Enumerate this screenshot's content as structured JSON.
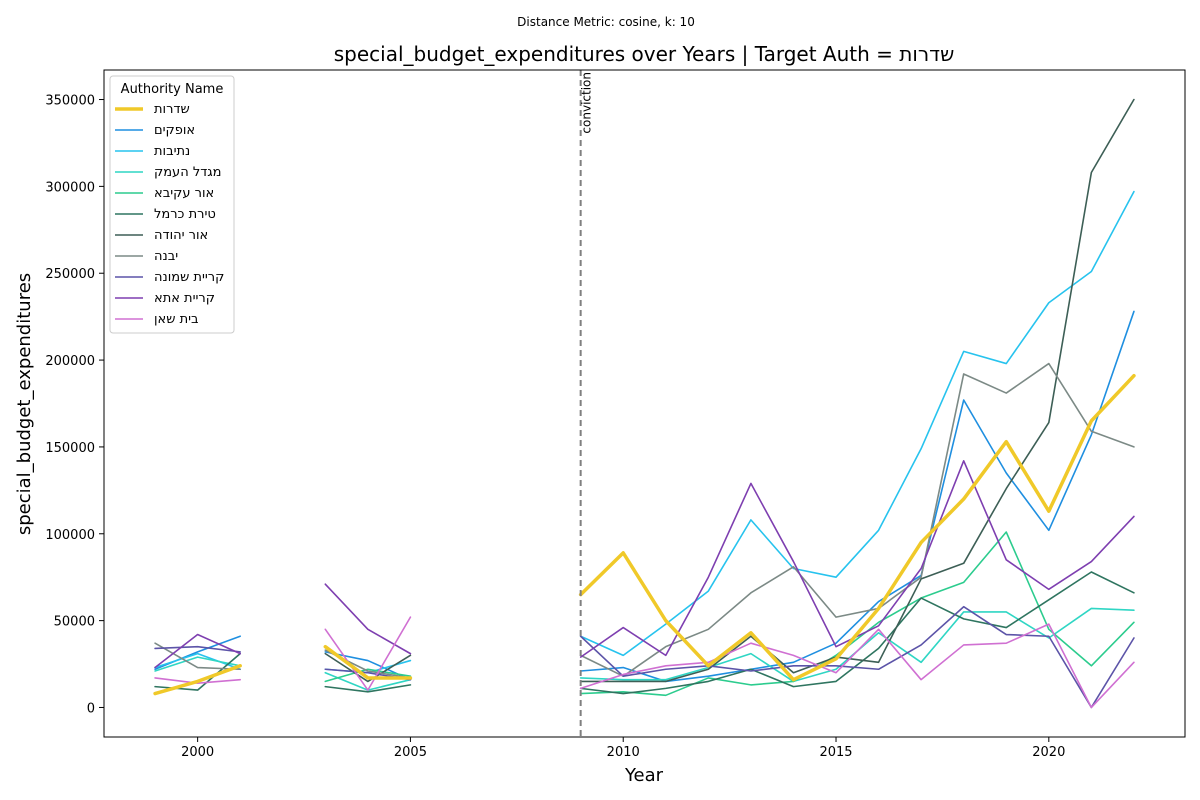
{
  "suptitle": "Distance Metric: cosine, k: 10",
  "chart_data": {
    "type": "line",
    "title": "special_budget_expenditures over Years | Target Auth = שדרות",
    "xlabel": "Year",
    "ylabel": "special_budget_expenditures",
    "xlim": [
      1997.8,
      2023.2
    ],
    "ylim": [
      -17000,
      367000
    ],
    "xticks": [
      2000,
      2005,
      2010,
      2015,
      2020
    ],
    "yticks": [
      0,
      50000,
      100000,
      150000,
      200000,
      250000,
      300000,
      350000
    ],
    "grid": false,
    "legend": {
      "title": "Authority Name",
      "placement": "top-left"
    },
    "vline": {
      "x": 2009,
      "label": "conviction",
      "color": "#808080"
    },
    "x": [
      1999,
      2000,
      2001,
      2003,
      2004,
      2005,
      2009,
      2010,
      2011,
      2012,
      2013,
      2014,
      2015,
      2016,
      2017,
      2018,
      2019,
      2020,
      2021,
      2022
    ],
    "series": [
      {
        "name": "שדרות",
        "color": "#f0c929",
        "highlight": true,
        "values": [
          8000,
          15000,
          24000,
          35000,
          17000,
          17000,
          65000,
          89000,
          50000,
          24000,
          43000,
          16000,
          28000,
          57000,
          95000,
          120000,
          153000,
          113000,
          165000,
          191000
        ]
      },
      {
        "name": "אופקים",
        "color": "#1f8fe0",
        "values": [
          22000,
          32000,
          41000,
          32000,
          27000,
          16000,
          21000,
          23000,
          15000,
          18000,
          22000,
          26000,
          37000,
          61000,
          76000,
          177000,
          135000,
          102000,
          157000,
          228000
        ]
      },
      {
        "name": "נתיבות",
        "color": "#27c3ee",
        "values": [
          23000,
          31000,
          22000,
          22000,
          20000,
          27000,
          41000,
          30000,
          48000,
          67000,
          108000,
          80000,
          75000,
          102000,
          149000,
          205000,
          198000,
          233000,
          251000,
          297000
        ]
      },
      {
        "name": "מגדל העמק",
        "color": "#2fd6c4",
        "values": [
          21000,
          29000,
          24000,
          20000,
          10000,
          16000,
          17000,
          16000,
          16000,
          23000,
          31000,
          15000,
          22000,
          43000,
          26000,
          55000,
          55000,
          40000,
          57000,
          56000
        ]
      },
      {
        "name": "אור עקיבא",
        "color": "#2ccc8e",
        "values": [
          null,
          null,
          null,
          15000,
          22000,
          18000,
          8000,
          9000,
          7000,
          17000,
          13000,
          15000,
          30000,
          49000,
          63000,
          72000,
          101000,
          45000,
          24000,
          49000
        ]
      },
      {
        "name": "טירת כרמל",
        "color": "#2f7560",
        "values": [
          12000,
          10000,
          31000,
          12000,
          9000,
          13000,
          11000,
          8000,
          11000,
          15000,
          22000,
          12000,
          15000,
          34000,
          63000,
          51000,
          46000,
          62000,
          78000,
          66000
        ]
      },
      {
        "name": "אור יהודה",
        "color": "#3d5f56",
        "values": [
          null,
          null,
          null,
          31000,
          15000,
          30000,
          15000,
          15000,
          15000,
          22000,
          41000,
          20000,
          29000,
          26000,
          74000,
          83000,
          126000,
          164000,
          308000,
          350000
        ]
      },
      {
        "name": "יבנה",
        "color": "#7c8a86",
        "values": [
          37000,
          23000,
          22000,
          33000,
          21000,
          17000,
          30000,
          18000,
          35000,
          45000,
          66000,
          81000,
          52000,
          57000,
          75000,
          192000,
          181000,
          198000,
          159000,
          150000
        ]
      },
      {
        "name": "קריית שמונה",
        "color": "#5c54a8",
        "values": [
          34000,
          35000,
          32000,
          22000,
          20000,
          16000,
          41000,
          18000,
          22000,
          24000,
          21000,
          24000,
          24000,
          22000,
          36000,
          58000,
          42000,
          41000,
          0,
          40000
        ]
      },
      {
        "name": "קריית אתא",
        "color": "#7e3fb0",
        "values": [
          23000,
          42000,
          31000,
          71000,
          45000,
          31000,
          29000,
          46000,
          30000,
          75000,
          129000,
          84000,
          35000,
          47000,
          80000,
          142000,
          85000,
          68000,
          84000,
          110000
        ]
      },
      {
        "name": "בית שאן",
        "color": "#d070d2",
        "values": [
          17000,
          14000,
          16000,
          45000,
          10000,
          52000,
          11000,
          19000,
          24000,
          26000,
          37000,
          30000,
          20000,
          45000,
          16000,
          36000,
          37000,
          48000,
          0,
          26000
        ]
      }
    ]
  }
}
